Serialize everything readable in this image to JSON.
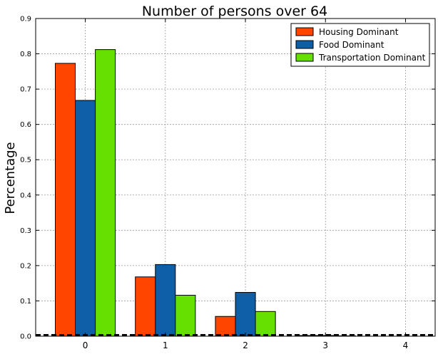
{
  "chart_data": {
    "type": "bar",
    "title": "Number of persons over 64",
    "xlabel": "",
    "ylabel": "Percentage",
    "categories": [
      "0",
      "1",
      "2",
      "3",
      "4"
    ],
    "series": [
      {
        "name": "Housing Dominant",
        "color": "#ff4500",
        "values": [
          0.773,
          0.168,
          0.056,
          0.002,
          0.0
        ]
      },
      {
        "name": "Food Dominant",
        "color": "#0e5fa5",
        "values": [
          0.668,
          0.203,
          0.124,
          0.002,
          0.0
        ]
      },
      {
        "name": "Transportation Dominant",
        "color": "#66e000",
        "values": [
          0.812,
          0.116,
          0.07,
          0.001,
          0.0
        ]
      }
    ],
    "yticks": [
      "0.0",
      "0.1",
      "0.2",
      "0.3",
      "0.4",
      "0.5",
      "0.6",
      "0.7",
      "0.8",
      "0.9"
    ],
    "ylim": [
      0,
      0.9
    ],
    "xlim": [
      -0.62,
      4.37
    ],
    "grid": true,
    "legend_position": "top-right"
  }
}
